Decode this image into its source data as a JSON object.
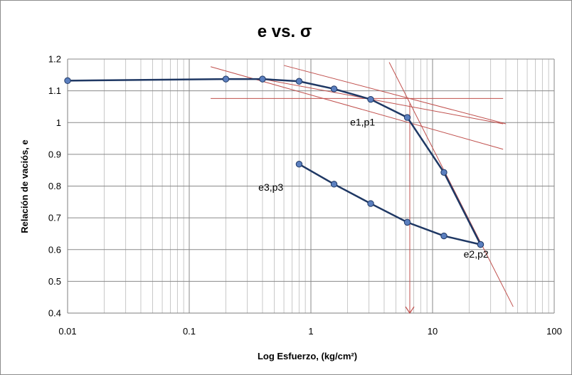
{
  "chart_data": {
    "type": "scatter",
    "title": "e vs. σ",
    "xlabel": "Log Esfuerzo, (kg/cm²)",
    "ylabel": "Relación de vaciós, e",
    "x_scale": "log",
    "xlim": [
      0.01,
      100
    ],
    "ylim": [
      0.4,
      1.2
    ],
    "x_ticks": [
      "0.01",
      "0.1",
      "1",
      "10",
      "100"
    ],
    "y_ticks": [
      "0.4",
      "0.5",
      "0.6",
      "0.7",
      "0.8",
      "0.9",
      "1",
      "1.1",
      "1.2"
    ],
    "grid": true,
    "series": [
      {
        "color": "#1f3864",
        "marker_color": "#5b7fbf",
        "x": [
          0.01,
          0.2,
          0.4,
          0.8,
          1.55,
          3.1,
          6.2,
          12.4,
          24.8
        ],
        "y": [
          1.132,
          1.137,
          1.137,
          1.13,
          1.106,
          1.073,
          1.016,
          0.843,
          0.616
        ]
      },
      {
        "color": "#1f3864",
        "marker_color": "#5b7fbf",
        "x": [
          0.8,
          1.55,
          3.1,
          6.2,
          12.4,
          24.8
        ],
        "y": [
          0.869,
          0.806,
          0.745,
          0.686,
          0.643,
          0.616
        ]
      }
    ],
    "construction_lines": {
      "color": "#c0504d",
      "lines": [
        {
          "x": [
            0.15,
            38
          ],
          "y": [
            1.076,
            1.076
          ]
        },
        {
          "x": [
            0.15,
            38
          ],
          "y": [
            1.176,
            0.916
          ]
        },
        {
          "x": [
            0.4,
            38
          ],
          "y": [
            1.137,
            0.996
          ]
        },
        {
          "x": [
            0.6,
            40
          ],
          "y": [
            1.18,
            0.996
          ]
        },
        {
          "x": [
            4.4,
            46
          ],
          "y": [
            1.19,
            0.42
          ]
        },
        {
          "x": [
            6.5,
            6.5
          ],
          "y": [
            1.06,
            0.4
          ]
        }
      ]
    },
    "annotations": [
      {
        "text": "e1,p1",
        "x": 2.1,
        "y": 0.99
      },
      {
        "text": "e3,p3",
        "x": 0.37,
        "y": 0.785
      },
      {
        "text": "e2,p2",
        "x": 18.0,
        "y": 0.575
      }
    ]
  }
}
